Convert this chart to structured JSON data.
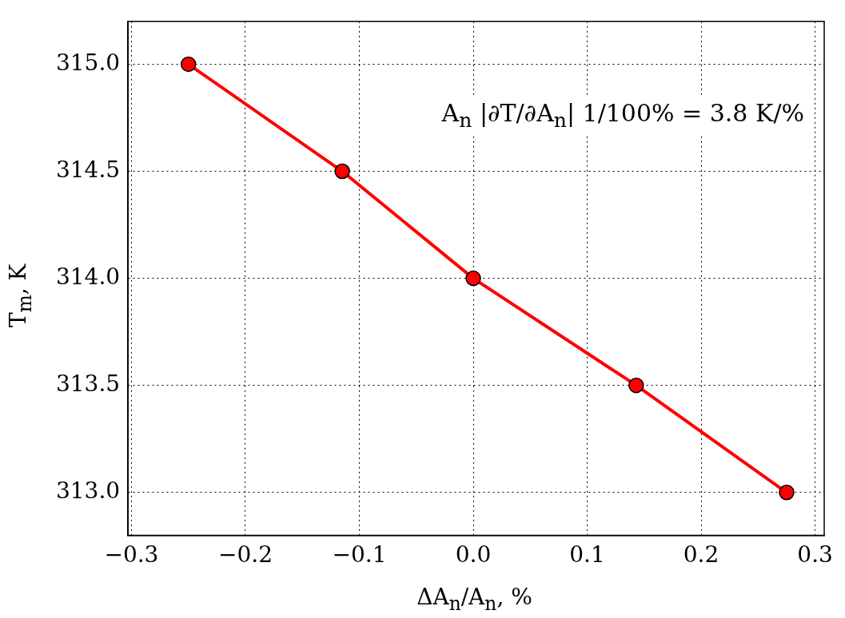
{
  "chart_data": {
    "type": "line",
    "xlabel": "ΔA$_{n}$/A$_{n}$, %",
    "ylabel": "T$_{m}$, K",
    "annotations": [
      "A$_{n}$ |∂T/∂A$_{n}$| 1/100% = 3.8 K/%"
    ],
    "x": [
      -0.25,
      -0.115,
      0,
      0.143,
      0.275
    ],
    "series": [
      {
        "color": "#ff0000",
        "values": [
          315,
          314.5,
          314,
          313.5,
          313
        ]
      }
    ],
    "xlim": [
      -0.303,
      0.308
    ],
    "ylim": [
      312.8,
      315.2
    ],
    "xticks": [
      {
        "value": -0.3,
        "label": "−0.3"
      },
      {
        "value": -0.2,
        "label": "−0.2"
      },
      {
        "value": -0.1,
        "label": "−0.1"
      },
      {
        "value": 0,
        "label": "0.0"
      },
      {
        "value": 0.1,
        "label": "0.1"
      },
      {
        "value": 0.2,
        "label": "0.2"
      },
      {
        "value": 0.3,
        "label": "0.3"
      }
    ],
    "yticks": [
      {
        "value": 313,
        "label": "313.0"
      },
      {
        "value": 313.5,
        "label": "313.5"
      },
      {
        "value": 314,
        "label": "314.0"
      },
      {
        "value": 314.5,
        "label": "314.5"
      },
      {
        "value": 315,
        "label": "315.0"
      }
    ],
    "grid": true,
    "marker": "circle",
    "line_style": "solid",
    "legend": false
  }
}
